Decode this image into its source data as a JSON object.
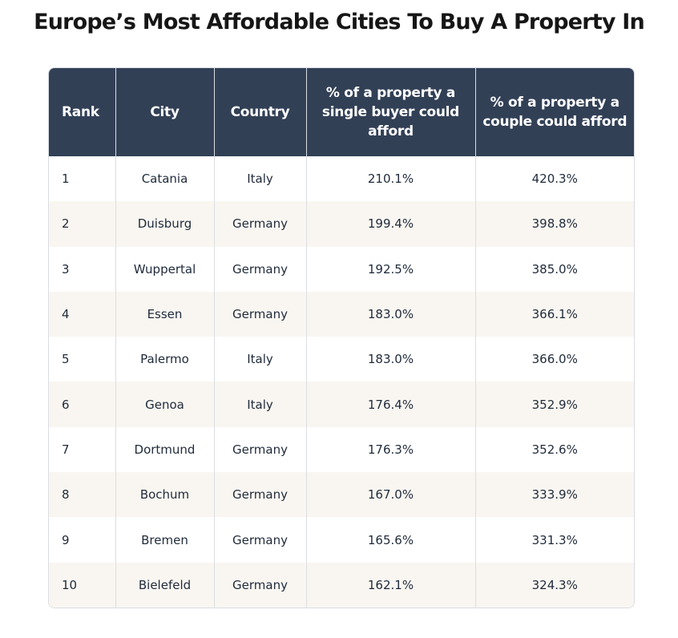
{
  "title": "Europe’s Most Affordable Cities To Buy A Property In",
  "columns": [
    "Rank",
    "City",
    "Country",
    "% of a property a single buyer could afford",
    "% of a property a couple could afford"
  ],
  "rows": [
    [
      "1",
      "Catania",
      "Italy",
      "210.1%",
      "420.3%"
    ],
    [
      "2",
      "Duisburg",
      "Germany",
      "199.4%",
      "398.8%"
    ],
    [
      "3",
      "Wuppertal",
      "Germany",
      "192.5%",
      "385.0%"
    ],
    [
      "4",
      "Essen",
      "Germany",
      "183.0%",
      "366.1%"
    ],
    [
      "5",
      "Palermo",
      "Italy",
      "183.0%",
      "366.0%"
    ],
    [
      "6",
      "Genoa",
      "Italy",
      "176.4%",
      "352.9%"
    ],
    [
      "7",
      "Dortmund",
      "Germany",
      "176.3%",
      "352.6%"
    ],
    [
      "8",
      "Bochum",
      "Germany",
      "167.0%",
      "333.9%"
    ],
    [
      "9",
      "Bremen",
      "Germany",
      "165.6%",
      "331.3%"
    ],
    [
      "10",
      "Bielefeld",
      "Germany",
      "162.1%",
      "324.3%"
    ]
  ],
  "colors": {
    "header_bg": "#324056",
    "stripe_bg": "#f9f6f1"
  }
}
